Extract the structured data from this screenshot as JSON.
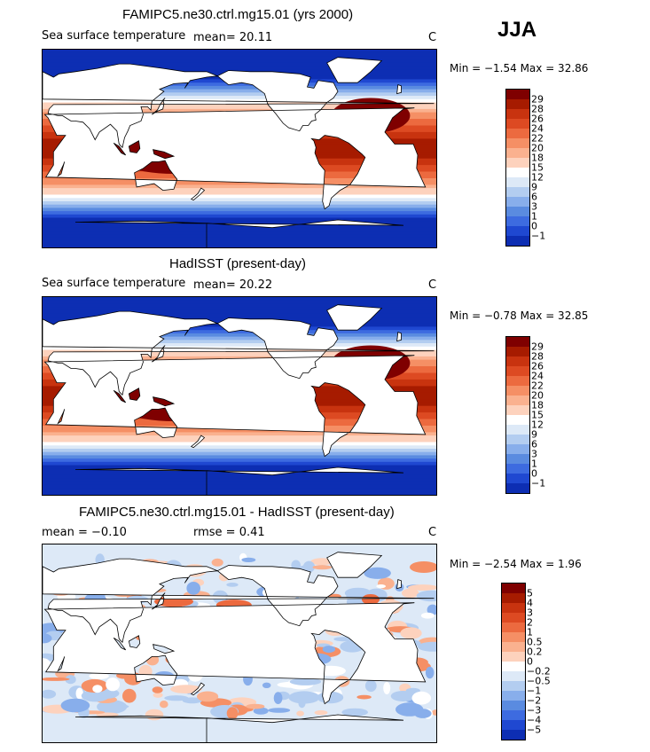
{
  "season_label": "JJA",
  "panels": [
    {
      "title": "FAMIPC5.ne30.ctrl.mg15.01 (yrs 2000)",
      "left_text": "Sea surface temperature",
      "mid_text": "mean=   20.11",
      "unit": "C",
      "min_max": "Min =   −1.54  Max =   32.86",
      "kind": "sst",
      "colorbar": {
        "colors": [
          "#7f0000",
          "#a61b00",
          "#c8330f",
          "#dd4a22",
          "#ec6a3f",
          "#f58f65",
          "#fab18f",
          "#fdd2bd",
          "#ffffff",
          "#dde9f7",
          "#b3cdf0",
          "#88aeeb",
          "#5a8be0",
          "#3d6be0",
          "#1f48d1",
          "#0d2eb3",
          "#001a8c"
        ],
        "labels": [
          "29",
          "28",
          "26",
          "24",
          "22",
          "20",
          "18",
          "15",
          "12",
          "9",
          "6",
          "3",
          "1",
          "0",
          "−1"
        ]
      }
    },
    {
      "title": "HadISST (present-day)",
      "left_text": "Sea surface temperature",
      "mid_text": "mean=   20.22",
      "unit": "C",
      "min_max": "Min =   −0.78  Max =   32.85",
      "kind": "sst",
      "colorbar": {
        "colors": [
          "#7f0000",
          "#a61b00",
          "#c8330f",
          "#dd4a22",
          "#ec6a3f",
          "#f58f65",
          "#fab18f",
          "#fdd2bd",
          "#ffffff",
          "#dde9f7",
          "#b3cdf0",
          "#88aeeb",
          "#5a8be0",
          "#3d6be0",
          "#1f48d1",
          "#0d2eb3",
          "#001a8c"
        ],
        "labels": [
          "29",
          "28",
          "26",
          "24",
          "22",
          "20",
          "18",
          "15",
          "12",
          "9",
          "6",
          "3",
          "1",
          "0",
          "−1"
        ]
      }
    },
    {
      "title": "FAMIPC5.ne30.ctrl.mg15.01 - HadISST (present-day)",
      "left_text": "mean =   −0.10",
      "mid_text": "rmse =    0.41",
      "unit": "C",
      "min_max": "Min =   −2.54  Max =    1.96",
      "kind": "diff",
      "colorbar": {
        "colors": [
          "#7f0000",
          "#a61b00",
          "#c8330f",
          "#dd4a22",
          "#ec6a3f",
          "#f58f65",
          "#fab18f",
          "#fdd2bd",
          "#ffffff",
          "#dde9f7",
          "#b3cdf0",
          "#88aeeb",
          "#5a8be0",
          "#3d6be0",
          "#1f48d1",
          "#0d2eb3",
          "#001a8c"
        ],
        "labels": [
          "5",
          "4",
          "3",
          "2",
          "1",
          "0.5",
          "0.2",
          "0",
          "−0.2",
          "−0.5",
          "−1",
          "−2",
          "−3",
          "−4",
          "−5"
        ]
      }
    }
  ]
}
